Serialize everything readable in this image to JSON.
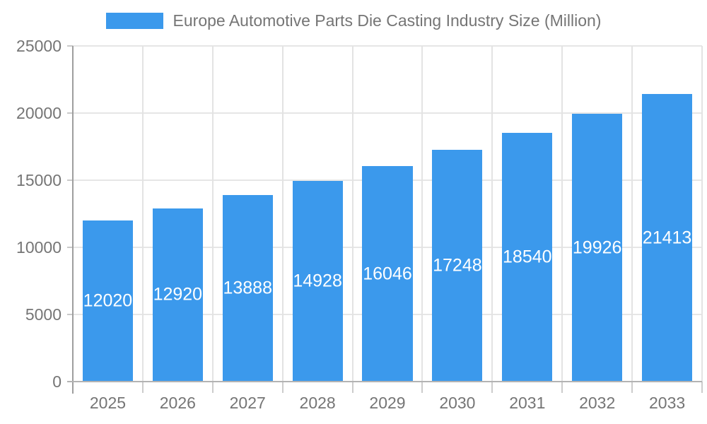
{
  "legend": {
    "label": "Europe Automotive Parts Die Casting Industry Size (Million)",
    "swatch_color": "#3b99ec"
  },
  "chart_data": {
    "type": "bar",
    "title": "Europe Automotive Parts Die Casting Industry Size (Million)",
    "categories": [
      "2025",
      "2026",
      "2027",
      "2028",
      "2029",
      "2030",
      "2031",
      "2032",
      "2033"
    ],
    "series": [
      {
        "name": "Europe Automotive Parts Die Casting Industry Size (Million)",
        "values": [
          12020,
          12920,
          13888,
          14928,
          16046,
          17248,
          18540,
          19926,
          21413
        ]
      }
    ],
    "xlabel": "",
    "ylabel": "",
    "ylim": [
      0,
      25000
    ],
    "yticks": [
      0,
      5000,
      10000,
      15000,
      20000,
      25000
    ],
    "grid": true,
    "legend_position": "top",
    "bar_color": "#3b99ec",
    "value_label_color": "#ffffff",
    "axis_text_color": "#757575",
    "gridline_color": "#e6e6e6"
  }
}
